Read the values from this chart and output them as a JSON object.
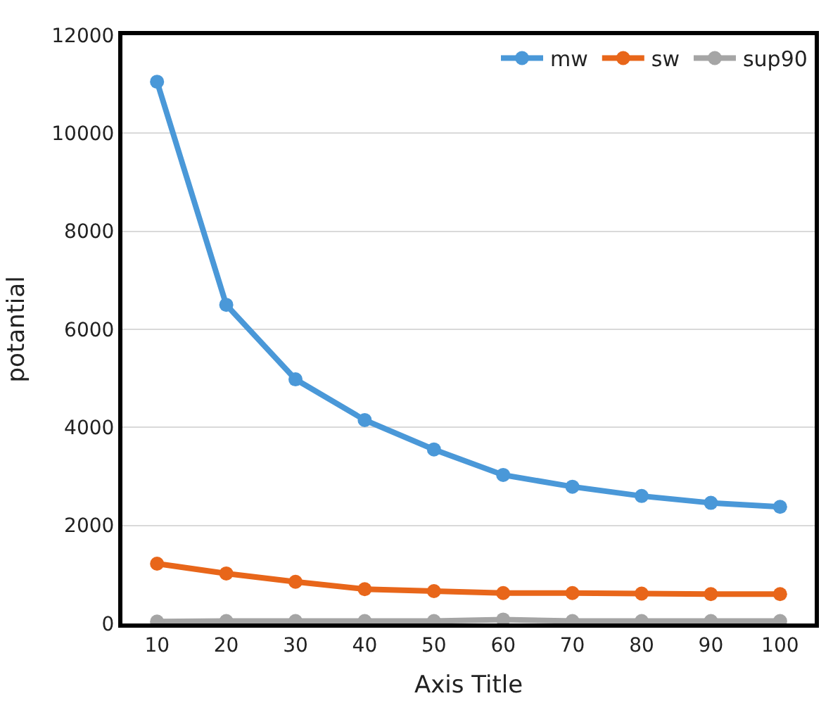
{
  "chart_data": {
    "type": "line",
    "xlabel": "Axis Title",
    "ylabel": "potantial",
    "categories": [
      "10",
      "20",
      "30",
      "40",
      "50",
      "60",
      "70",
      "80",
      "90",
      "100"
    ],
    "series": [
      {
        "name": "mw",
        "color": "#4a98d8",
        "values": [
          11050,
          6500,
          4980,
          4150,
          3550,
          3030,
          2790,
          2600,
          2460,
          2380
        ]
      },
      {
        "name": "sw",
        "color": "#e8661a",
        "values": [
          1220,
          1020,
          850,
          700,
          660,
          620,
          620,
          610,
          600,
          600
        ]
      },
      {
        "name": "sup90",
        "color": "#a5a5a5",
        "values": [
          40,
          50,
          50,
          50,
          50,
          80,
          50,
          50,
          50,
          50
        ]
      }
    ],
    "ylim": [
      0,
      12000
    ],
    "yticks": [
      0,
      2000,
      4000,
      6000,
      8000,
      10000,
      12000
    ],
    "grid": "y",
    "legend": "top right",
    "marker": "circle",
    "line_style": "solid"
  }
}
